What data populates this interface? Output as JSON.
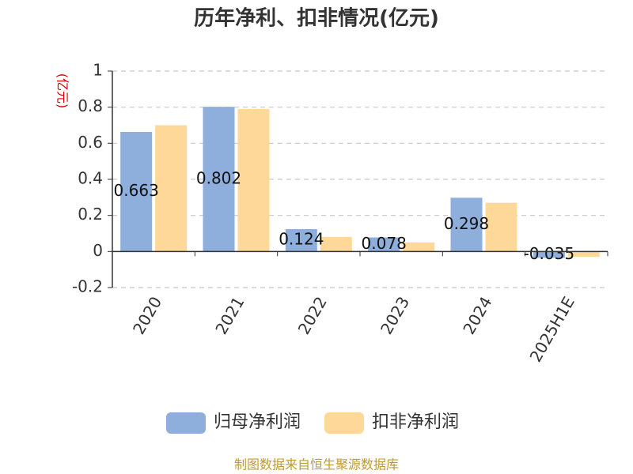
{
  "chart_data": {
    "type": "bar",
    "title": "历年净利、扣非情况(亿元)",
    "y_axis_label": "(亿元)",
    "categories": [
      "2020",
      "2021",
      "2022",
      "2023",
      "2024",
      "2025H1E"
    ],
    "series": [
      {
        "name": "归母净利润",
        "color": "#8eaedc",
        "values": [
          0.663,
          0.802,
          0.124,
          0.078,
          0.298,
          -0.035
        ]
      },
      {
        "name": "扣非净利润",
        "color": "#fed898",
        "values": [
          0.7,
          0.79,
          0.08,
          0.05,
          0.27,
          -0.03
        ]
      }
    ],
    "ylim": [
      -0.2,
      1
    ],
    "yticks": [
      -0.2,
      0,
      0.2,
      0.4,
      0.6,
      0.8,
      1
    ],
    "grid": true,
    "legend": "bottom",
    "source": "制图数据来自恒生聚源数据库"
  }
}
